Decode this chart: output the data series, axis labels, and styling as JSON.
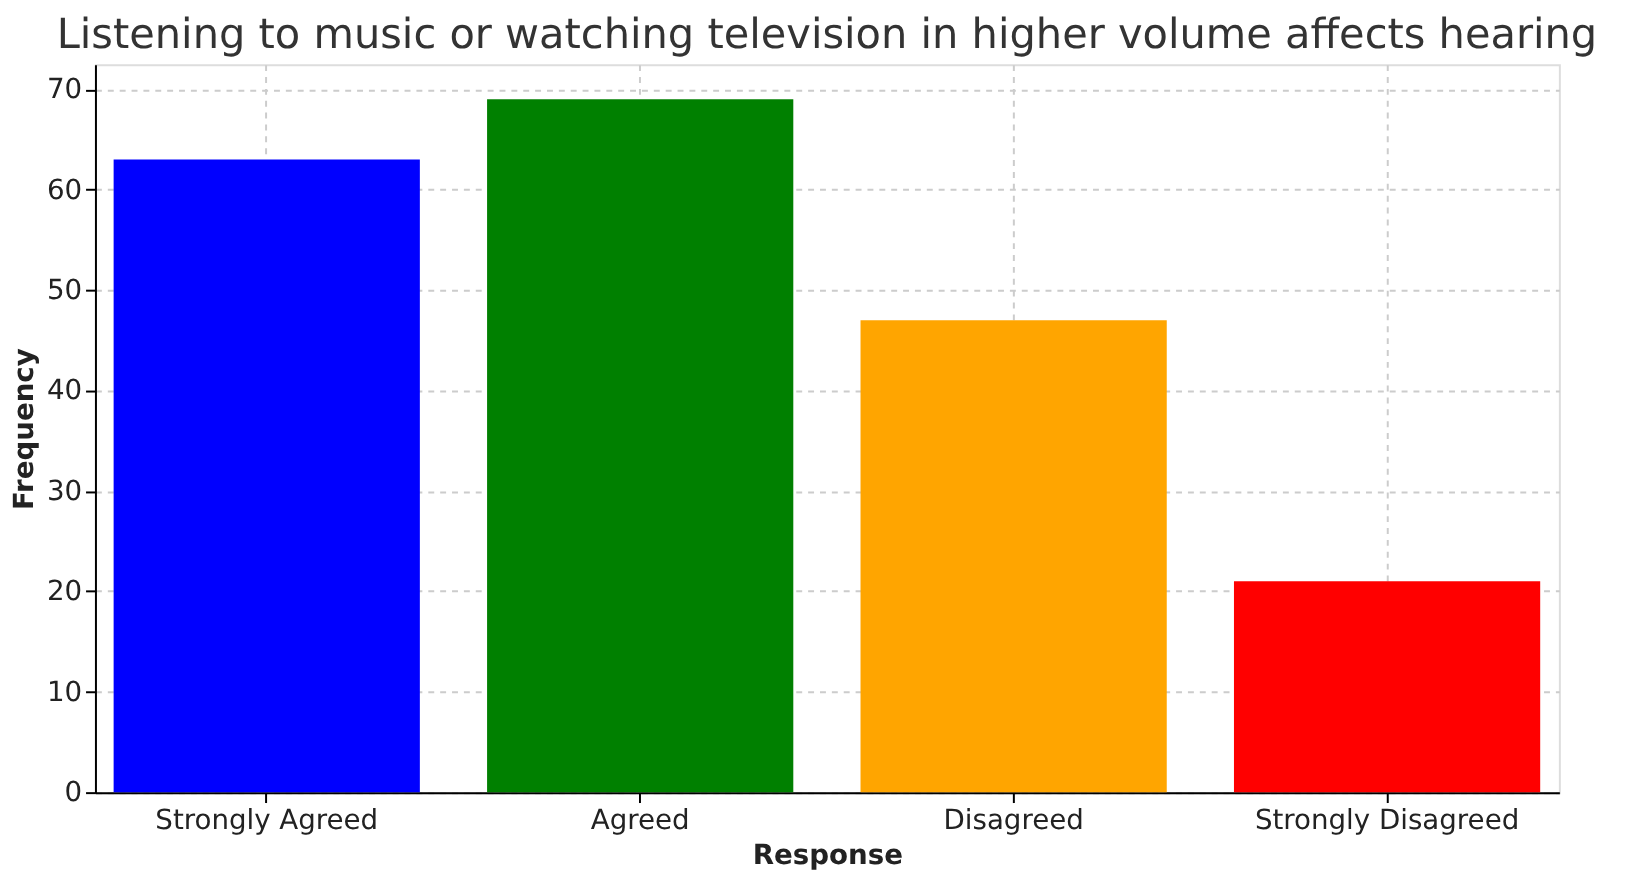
{
  "chart_data": {
    "type": "bar",
    "title": "Listening to music or watching television in higher volume affects hearing",
    "xlabel": "Response",
    "ylabel": "Frequency",
    "categories": [
      "Strongly Agreed",
      "Agreed",
      "Disagreed",
      "Strongly Disagreed"
    ],
    "values": [
      63,
      69,
      47,
      21
    ],
    "colors": [
      "#0000ff",
      "#008000",
      "#ffa500",
      "#ff0000"
    ],
    "ylim": [
      0,
      72.5
    ],
    "yticks": [
      0,
      10,
      20,
      30,
      40,
      50,
      60,
      70
    ],
    "grid": true
  }
}
